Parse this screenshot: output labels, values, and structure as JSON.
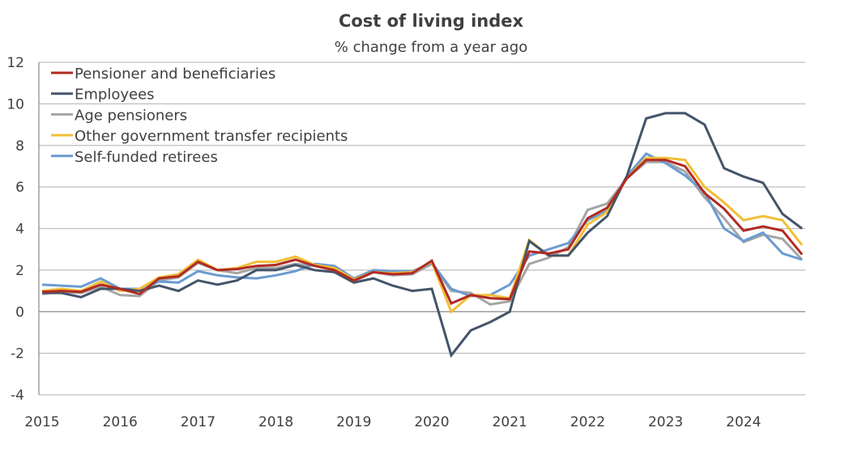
{
  "chart_data": {
    "type": "line",
    "title": "Cost of living index",
    "subtitle": "% change from a year ago",
    "xlabel": "",
    "ylabel": "",
    "ylim": [
      -4,
      12
    ],
    "yticks": [
      12,
      10,
      8,
      6,
      4,
      2,
      0,
      -2,
      -4
    ],
    "x_tick_labels": [
      "2015",
      "2016",
      "2017",
      "2018",
      "2019",
      "2020",
      "2021",
      "2022",
      "2023",
      "2024"
    ],
    "x_start_year": 2015,
    "periods_per_year": 4,
    "grid": true,
    "legend_position": "top-left",
    "series": [
      {
        "name": "Pensioner and beneficiaries",
        "color": "#B22A22",
        "values": [
          0.95,
          1.0,
          0.95,
          1.3,
          1.1,
          0.85,
          1.6,
          1.7,
          2.4,
          2.0,
          2.05,
          2.2,
          2.25,
          2.5,
          2.2,
          2.0,
          1.5,
          1.9,
          1.8,
          1.85,
          2.45,
          0.4,
          0.8,
          0.65,
          0.6,
          2.9,
          2.8,
          3.0,
          4.5,
          5.0,
          6.4,
          7.3,
          7.3,
          7.0,
          5.7,
          4.95,
          3.9,
          4.1,
          3.9,
          2.75
        ]
      },
      {
        "name": "Employees",
        "color": "#44546A",
        "values": [
          0.9,
          0.9,
          0.7,
          1.1,
          1.1,
          1.0,
          1.25,
          1.0,
          1.5,
          1.3,
          1.5,
          2.0,
          2.0,
          2.25,
          2.0,
          1.9,
          1.4,
          1.6,
          1.25,
          1.0,
          1.1,
          -2.1,
          -0.9,
          -0.5,
          0.0,
          3.4,
          2.7,
          2.7,
          3.8,
          4.6,
          6.5,
          9.3,
          9.55,
          9.55,
          9.0,
          6.9,
          6.5,
          6.2,
          4.7,
          4.0
        ]
      },
      {
        "name": "Age pensioners",
        "color": "#A5A5A5",
        "values": [
          0.85,
          0.95,
          0.9,
          1.2,
          0.8,
          0.75,
          1.5,
          1.65,
          2.35,
          2.0,
          1.85,
          2.1,
          2.1,
          2.3,
          2.2,
          2.0,
          1.45,
          1.9,
          1.75,
          1.8,
          2.3,
          1.0,
          0.9,
          0.35,
          0.5,
          2.3,
          2.6,
          3.1,
          4.9,
          5.2,
          6.4,
          7.2,
          7.2,
          6.75,
          5.5,
          4.5,
          3.35,
          3.7,
          3.5,
          2.5
        ]
      },
      {
        "name": "Other government transfer recipients",
        "color": "#F2BE36",
        "values": [
          1.0,
          1.1,
          1.0,
          1.45,
          1.0,
          1.1,
          1.65,
          1.8,
          2.5,
          2.0,
          2.1,
          2.4,
          2.4,
          2.65,
          2.25,
          2.1,
          1.55,
          1.9,
          1.85,
          1.9,
          2.4,
          0.0,
          0.8,
          0.8,
          0.65,
          3.45,
          2.7,
          2.7,
          4.2,
          4.8,
          6.4,
          7.4,
          7.4,
          7.3,
          6.0,
          5.25,
          4.4,
          4.6,
          4.4,
          3.2
        ]
      },
      {
        "name": "Self-funded retirees",
        "color": "#6B9BD1",
        "values": [
          1.3,
          1.25,
          1.2,
          1.6,
          1.1,
          1.1,
          1.45,
          1.4,
          1.95,
          1.75,
          1.65,
          1.6,
          1.75,
          1.95,
          2.3,
          2.2,
          1.6,
          2.0,
          1.95,
          1.95,
          2.35,
          1.1,
          0.75,
          0.8,
          1.3,
          2.7,
          3.0,
          3.3,
          4.4,
          4.85,
          6.5,
          7.6,
          7.15,
          6.55,
          5.75,
          4.0,
          3.4,
          3.8,
          2.8,
          2.5
        ]
      }
    ]
  }
}
